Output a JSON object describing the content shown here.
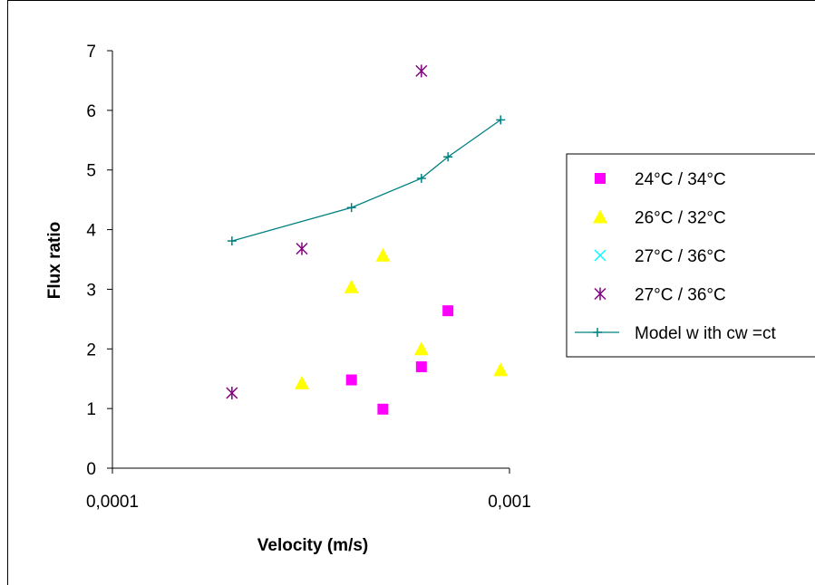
{
  "chart_data": {
    "type": "scatter",
    "title": "",
    "xlabel": "Velocity (m/s)",
    "ylabel": "Flux ratio",
    "xscale": "log",
    "xlim": [
      0.0001,
      0.001
    ],
    "ylim": [
      0,
      7
    ],
    "x_tick_values": [
      0.0001,
      0.001
    ],
    "x_tick_labels": [
      "0,0001",
      "0,001"
    ],
    "y_tick_values": [
      0,
      1,
      2,
      3,
      4,
      5,
      6,
      7
    ],
    "y_tick_labels": [
      "0",
      "1",
      "2",
      "3",
      "4",
      "5",
      "6",
      "7"
    ],
    "grid": false,
    "legend_position": "right",
    "series": [
      {
        "name": "24°C / 34°C",
        "marker": "square",
        "color": "#ff00ff",
        "x": [
          0.0004,
          0.00048,
          0.0006,
          0.0007
        ],
        "y": [
          1.48,
          0.99,
          1.7,
          2.64
        ]
      },
      {
        "name": "26°C / 32°C",
        "marker": "triangle",
        "color": "#ffff00",
        "x": [
          0.0003,
          0.0004,
          0.00048,
          0.0006,
          0.00095
        ],
        "y": [
          1.43,
          3.04,
          3.57,
          2.0,
          1.65
        ]
      },
      {
        "name": "27°C / 36°C",
        "marker": "x",
        "color": "#00ffff",
        "x": [],
        "y": []
      },
      {
        "name": "27°C / 36°C",
        "marker": "asterisk",
        "color": "#800080",
        "x": [
          0.0002,
          0.0003,
          0.0006
        ],
        "y": [
          1.26,
          3.68,
          6.66
        ]
      },
      {
        "name": "Model w ith cw =ct",
        "marker": "plus",
        "line": true,
        "color": "#008080",
        "x": [
          0.0002,
          0.0004,
          0.0006,
          0.0007,
          0.00095
        ],
        "y": [
          3.81,
          4.37,
          4.86,
          5.22,
          5.84
        ]
      }
    ]
  }
}
